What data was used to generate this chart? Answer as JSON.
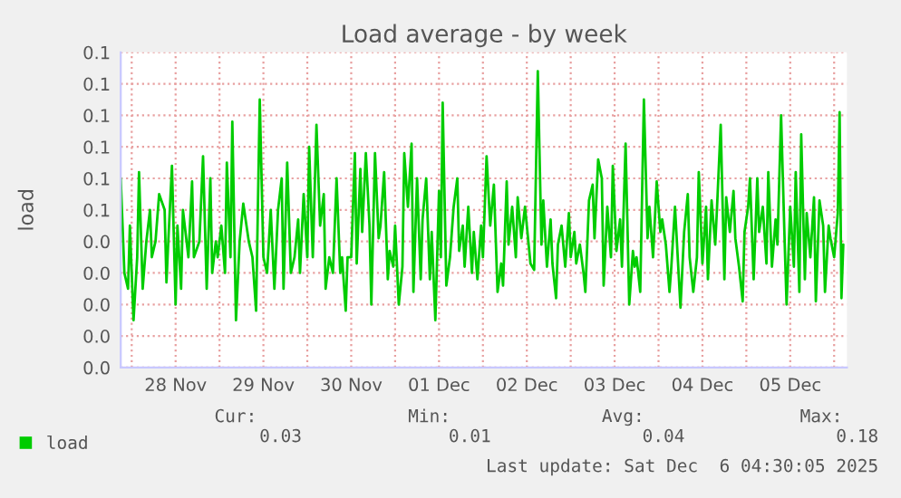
{
  "chart_data": {
    "type": "line",
    "title": "Load average - by week",
    "ylabel": "load",
    "annotations": [
      "Cur:",
      "0.03",
      "Min:",
      "0.01",
      "Avg:",
      "0.04",
      "Max:",
      "0.18",
      "Last update: Sat Dec  6 04:30:05 2025"
    ],
    "series": [
      {
        "name": "load",
        "color": "#00cc00",
        "x": [
          "2025-11-27T21:00",
          "2025-11-27T22:00",
          "2025-11-27T23:00",
          "2025-11-27T23:30",
          "2025-11-28T00:30",
          "2025-11-28T01:30",
          "2025-11-28T02:00",
          "2025-11-28T03:00",
          "2025-11-28T04:00",
          "2025-11-28T05:00",
          "2025-11-28T05:30",
          "2025-11-28T06:30",
          "2025-11-28T07:30",
          "2025-11-28T09:00",
          "2025-11-28T09:30",
          "2025-11-28T10:00",
          "2025-11-28T11:00",
          "2025-11-28T12:00",
          "2025-11-28T12:30",
          "2025-11-28T13:30",
          "2025-11-28T14:00",
          "2025-11-28T15:30",
          "2025-11-28T16:30",
          "2025-11-28T17:00",
          "2025-11-28T18:30",
          "2025-11-28T19:30",
          "2025-11-28T20:30",
          "2025-11-28T21:30",
          "2025-11-28T22:00",
          "2025-11-28T23:00",
          "2025-11-28T23:30",
          "2025-11-29T00:30",
          "2025-11-29T01:30",
          "2025-11-29T02:00",
          "2025-11-29T03:00",
          "2025-11-29T03:30",
          "2025-11-29T04:30",
          "2025-11-29T05:30",
          "2025-11-29T06:30",
          "2025-11-29T08:00",
          "2025-11-29T09:00",
          "2025-11-29T10:00",
          "2025-11-29T11:00",
          "2025-11-29T12:00",
          "2025-11-29T13:00",
          "2025-11-29T14:00",
          "2025-11-29T15:00",
          "2025-11-29T16:00",
          "2025-11-29T17:00",
          "2025-11-29T17:30",
          "2025-11-29T18:30",
          "2025-11-29T19:30",
          "2025-11-29T20:30",
          "2025-11-29T21:30",
          "2025-11-29T22:00",
          "2025-11-29T23:00",
          "2025-11-30T00:00",
          "2025-11-30T00:30",
          "2025-11-30T01:30",
          "2025-11-30T02:30",
          "2025-11-30T03:30",
          "2025-11-30T04:30",
          "2025-11-30T05:00",
          "2025-11-30T06:00",
          "2025-11-30T07:00",
          "2025-11-30T08:00",
          "2025-11-30T09:00",
          "2025-11-30T09:30",
          "2025-11-30T10:30",
          "2025-11-30T11:00",
          "2025-11-30T12:00",
          "2025-11-30T13:00",
          "2025-11-30T13:30",
          "2025-11-30T14:30",
          "2025-11-30T15:00",
          "2025-11-30T16:00",
          "2025-11-30T17:00",
          "2025-11-30T17:30",
          "2025-11-30T18:30",
          "2025-11-30T19:30",
          "2025-11-30T20:00",
          "2025-11-30T21:00",
          "2025-11-30T22:00",
          "2025-11-30T22:30",
          "2025-11-30T23:30",
          "2025-12-01T00:00",
          "2025-12-01T01:00",
          "2025-12-01T02:00",
          "2025-12-01T02:30",
          "2025-12-01T03:30",
          "2025-12-01T04:30",
          "2025-12-01T05:00",
          "2025-12-01T06:00",
          "2025-12-01T07:00",
          "2025-12-01T07:30",
          "2025-12-01T08:30",
          "2025-12-01T09:30",
          "2025-12-01T10:00",
          "2025-12-01T11:00",
          "2025-12-01T12:00",
          "2025-12-01T12:30",
          "2025-12-01T13:00",
          "2025-12-01T14:00",
          "2025-12-01T15:00",
          "2025-12-01T16:00",
          "2025-12-01T17:00",
          "2025-12-01T17:30",
          "2025-12-01T18:30",
          "2025-12-01T19:00",
          "2025-12-01T20:00",
          "2025-12-01T21:00",
          "2025-12-01T21:30",
          "2025-12-01T22:30",
          "2025-12-01T23:30",
          "2025-12-02T00:00",
          "2025-12-02T01:00",
          "2025-12-02T02:00",
          "2025-12-02T03:00",
          "2025-12-02T04:00",
          "2025-12-02T05:00",
          "2025-12-02T05:30",
          "2025-12-02T06:30",
          "2025-12-02T07:00",
          "2025-12-02T08:00",
          "2025-12-02T09:00",
          "2025-12-02T09:30",
          "2025-12-02T10:30",
          "2025-12-02T11:30",
          "2025-12-02T12:30",
          "2025-12-02T13:00",
          "2025-12-02T14:00",
          "2025-12-02T15:00",
          "2025-12-02T16:00",
          "2025-12-02T16:30",
          "2025-12-02T17:30",
          "2025-12-02T18:30",
          "2025-12-02T19:00",
          "2025-12-02T20:00",
          "2025-12-02T20:30",
          "2025-12-02T21:30",
          "2025-12-02T22:30",
          "2025-12-02T23:30",
          "2025-12-03T00:00",
          "2025-12-03T01:00",
          "2025-12-03T01:30",
          "2025-12-03T02:30",
          "2025-12-03T03:30",
          "2025-12-03T04:00",
          "2025-12-03T05:00",
          "2025-12-03T06:00",
          "2025-12-03T06:30",
          "2025-12-03T07:30",
          "2025-12-03T08:30",
          "2025-12-03T09:00",
          "2025-12-03T10:00",
          "2025-12-03T11:00",
          "2025-12-03T11:30",
          "2025-12-03T12:30",
          "2025-12-03T13:30",
          "2025-12-03T14:00",
          "2025-12-03T15:00",
          "2025-12-03T16:00",
          "2025-12-03T17:00",
          "2025-12-03T17:30",
          "2025-12-03T18:00",
          "2025-12-03T19:00",
          "2025-12-03T20:00",
          "2025-12-03T21:00",
          "2025-12-03T21:30",
          "2025-12-03T22:30",
          "2025-12-03T23:30",
          "2025-12-04T00:30",
          "2025-12-04T01:00",
          "2025-12-04T02:00",
          "2025-12-04T03:00",
          "2025-12-04T03:30",
          "2025-12-04T04:30",
          "2025-12-04T06:00",
          "2025-12-04T07:00",
          "2025-12-04T08:00",
          "2025-12-04T08:30",
          "2025-12-04T09:30",
          "2025-12-04T10:30",
          "2025-12-04T11:00",
          "2025-12-04T12:00",
          "2025-12-04T13:00",
          "2025-12-04T13:30",
          "2025-12-04T14:30",
          "2025-12-04T15:30",
          "2025-12-04T16:00",
          "2025-12-04T17:00",
          "2025-12-04T18:00",
          "2025-12-04T18:30",
          "2025-12-04T19:30",
          "2025-12-04T20:30",
          "2025-12-04T21:00",
          "2025-12-04T22:00",
          "2025-12-04T23:00",
          "2025-12-04T23:30",
          "2025-12-05T00:30",
          "2025-12-05T01:00",
          "2025-12-05T02:00",
          "2025-12-05T03:00",
          "2025-12-05T03:30",
          "2025-12-05T04:30",
          "2025-12-05T05:30",
          "2025-12-05T06:00",
          "2025-12-05T07:00",
          "2025-12-05T08:00",
          "2025-12-05T08:30",
          "2025-12-05T09:30",
          "2025-12-05T10:30",
          "2025-12-05T11:00",
          "2025-12-05T12:00",
          "2025-12-05T13:00",
          "2025-12-05T13:30",
          "2025-12-05T14:30",
          "2025-12-05T15:00",
          "2025-12-05T16:00",
          "2025-12-05T16:30",
          "2025-12-05T17:30",
          "2025-12-05T18:30",
          "2025-12-05T19:00",
          "2025-12-05T20:00",
          "2025-12-05T21:00",
          "2025-12-05T21:30",
          "2025-12-05T22:30",
          "2025-12-05T23:00",
          "2025-12-06T00:00",
          "2025-12-06T01:00",
          "2025-12-06T01:30",
          "2025-12-06T02:00",
          "2025-12-06T02:30"
        ],
        "values": [
          0.06,
          0.03,
          0.025,
          0.045,
          0.015,
          0.035,
          0.062,
          0.025,
          0.04,
          0.05,
          0.035,
          0.04,
          0.055,
          0.05,
          0.027,
          0.04,
          0.064,
          0.02,
          0.045,
          0.025,
          0.05,
          0.035,
          0.059,
          0.035,
          0.04,
          0.067,
          0.025,
          0.06,
          0.03,
          0.04,
          0.035,
          0.045,
          0.03,
          0.065,
          0.035,
          0.078,
          0.015,
          0.04,
          0.052,
          0.04,
          0.035,
          0.018,
          0.085,
          0.035,
          0.03,
          0.05,
          0.025,
          0.05,
          0.06,
          0.025,
          0.065,
          0.03,
          0.035,
          0.047,
          0.03,
          0.055,
          0.035,
          0.07,
          0.035,
          0.077,
          0.045,
          0.055,
          0.025,
          0.035,
          0.03,
          0.06,
          0.03,
          0.035,
          0.018,
          0.035,
          0.035,
          0.068,
          0.033,
          0.063,
          0.043,
          0.068,
          0.045,
          0.02,
          0.068,
          0.041,
          0.045,
          0.062,
          0.028,
          0.037,
          0.032,
          0.045,
          0.02,
          0.032,
          0.068,
          0.051,
          0.071,
          0.024,
          0.06,
          0.028,
          0.047,
          0.06,
          0.028,
          0.043,
          0.015,
          0.056,
          0.035,
          0.084,
          0.026,
          0.035,
          0.051,
          0.06,
          0.037,
          0.045,
          0.032,
          0.051,
          0.03,
          0.043,
          0.028,
          0.045,
          0.035,
          0.067,
          0.045,
          0.058,
          0.024,
          0.033,
          0.026,
          0.059,
          0.039,
          0.051,
          0.035,
          0.054,
          0.041,
          0.051,
          0.039,
          0.033,
          0.031,
          0.094,
          0.039,
          0.053,
          0.032,
          0.047,
          0.033,
          0.022,
          0.039,
          0.045,
          0.032,
          0.049,
          0.035,
          0.043,
          0.033,
          0.039,
          0.03,
          0.024,
          0.053,
          0.058,
          0.041,
          0.066,
          0.06,
          0.026,
          0.051,
          0.035,
          0.064,
          0.037,
          0.047,
          0.032,
          0.071,
          0.02,
          0.037,
          0.032,
          0.035,
          0.024,
          0.085,
          0.041,
          0.051,
          0.035,
          0.059,
          0.043,
          0.047,
          0.039,
          0.024,
          0.032,
          0.051,
          0.019,
          0.043,
          0.055,
          0.035,
          0.024,
          0.035,
          0.062,
          0.033,
          0.051,
          0.028,
          0.053,
          0.039,
          0.051,
          0.077,
          0.028,
          0.054,
          0.043,
          0.056,
          0.041,
          0.032,
          0.021,
          0.043,
          0.051,
          0.06,
          0.028,
          0.06,
          0.043,
          0.051,
          0.033,
          0.062,
          0.032,
          0.047,
          0.039,
          0.08,
          0.039,
          0.02,
          0.051,
          0.032,
          0.062,
          0.024,
          0.074,
          0.028,
          0.049,
          0.035,
          0.054,
          0.021,
          0.053,
          0.045,
          0.024,
          0.045,
          0.041,
          0.035,
          0.049,
          0.081,
          0.022,
          0.039
        ]
      }
    ],
    "xlim": [
      "2025-11-27T21:00",
      "2025-12-06T03:30"
    ],
    "xticks": [
      {
        "value": "2025-11-28T00:00",
        "label": null
      },
      {
        "value": "2025-11-28T12:00",
        "label": "28 Nov"
      },
      {
        "value": "2025-11-29T00:00",
        "label": null
      },
      {
        "value": "2025-11-29T12:00",
        "label": "29 Nov"
      },
      {
        "value": "2025-11-30T00:00",
        "label": null
      },
      {
        "value": "2025-11-30T12:00",
        "label": "30 Nov"
      },
      {
        "value": "2025-12-01T00:00",
        "label": null
      },
      {
        "value": "2025-12-01T12:00",
        "label": "01 Dec"
      },
      {
        "value": "2025-12-02T00:00",
        "label": null
      },
      {
        "value": "2025-12-02T12:00",
        "label": "02 Dec"
      },
      {
        "value": "2025-12-03T00:00",
        "label": null
      },
      {
        "value": "2025-12-03T12:00",
        "label": "03 Dec"
      },
      {
        "value": "2025-12-04T00:00",
        "label": null
      },
      {
        "value": "2025-12-04T12:00",
        "label": "04 Dec"
      },
      {
        "value": "2025-12-05T00:00",
        "label": null
      },
      {
        "value": "2025-12-05T12:00",
        "label": "05 Dec"
      },
      {
        "value": "2025-12-06T00:00",
        "label": null
      }
    ],
    "ylim": [
      0,
      0.1
    ],
    "yticks": [
      {
        "value": 0,
        "label": "0.0"
      },
      {
        "value": 0.01,
        "label": "0.0"
      },
      {
        "value": 0.02,
        "label": "0.0"
      },
      {
        "value": 0.03,
        "label": "0.0"
      },
      {
        "value": 0.04,
        "label": "0.0"
      },
      {
        "value": 0.05,
        "label": "0.1"
      },
      {
        "value": 0.06,
        "label": "0.1"
      },
      {
        "value": 0.07,
        "label": "0.1"
      },
      {
        "value": 0.08,
        "label": "0.1"
      },
      {
        "value": 0.09,
        "label": "0.1"
      },
      {
        "value": 0.1,
        "label": "0.1"
      }
    ],
    "grid": true,
    "legend": "bottom left",
    "marker": "none",
    "line_style": "solid"
  }
}
